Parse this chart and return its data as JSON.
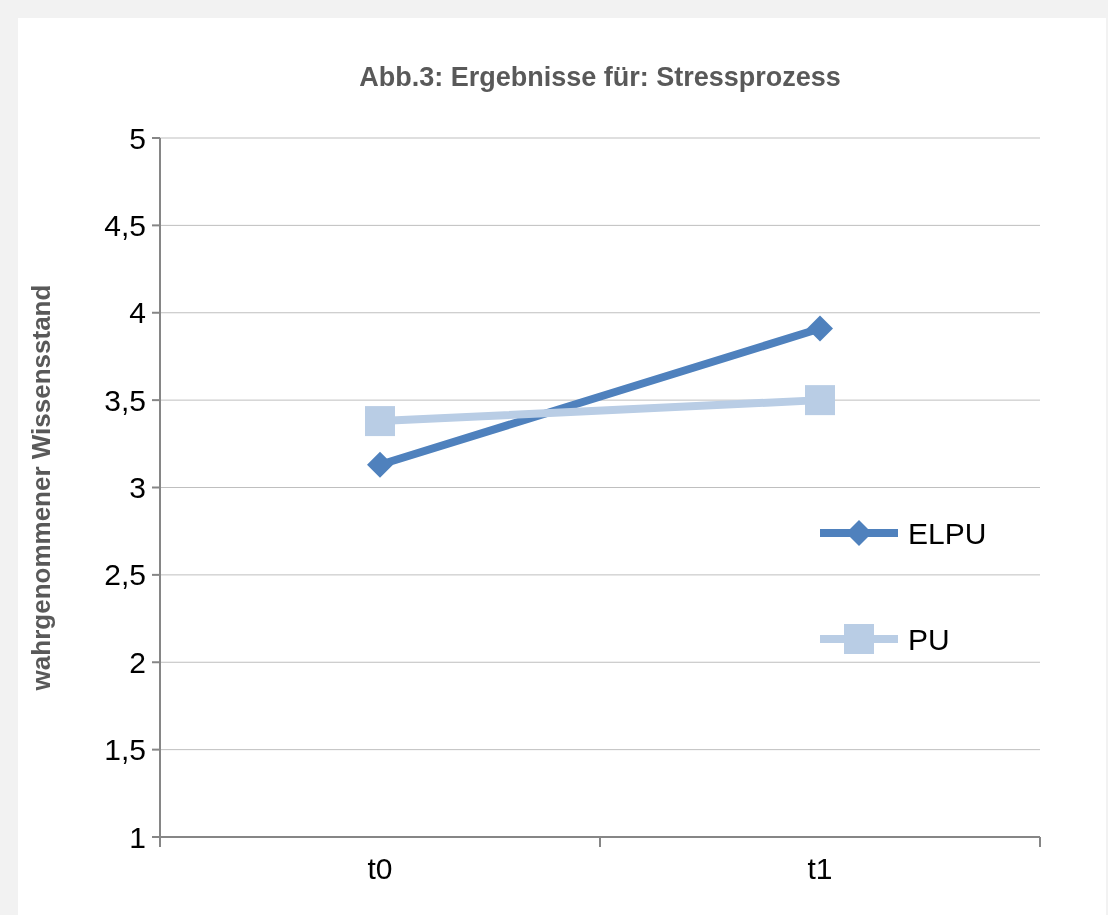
{
  "chart_data": {
    "type": "line",
    "title": "Abb.3:  Ergebnisse für: Stressprozess",
    "ylabel": "wahrgenommener Wissensstand",
    "categories": [
      "t0",
      "t1"
    ],
    "series": [
      {
        "name": "ELPU",
        "color": "#4f81bd",
        "values": [
          3.13,
          3.91
        ],
        "marker": "diamond"
      },
      {
        "name": "PU",
        "color": "#b9cde5",
        "values": [
          3.38,
          3.5
        ],
        "marker": "square"
      }
    ],
    "ylim": [
      1,
      5
    ],
    "yticks": [
      1,
      {
        "value": 1.5,
        "label": "1,5"
      },
      2,
      {
        "value": 2.5,
        "label": "2,5"
      },
      3,
      {
        "value": 3.5,
        "label": "3,5"
      },
      4,
      {
        "value": 4.5,
        "label": "4,5"
      },
      5
    ],
    "grid": "y",
    "legend": "right",
    "line_style": "solid"
  }
}
